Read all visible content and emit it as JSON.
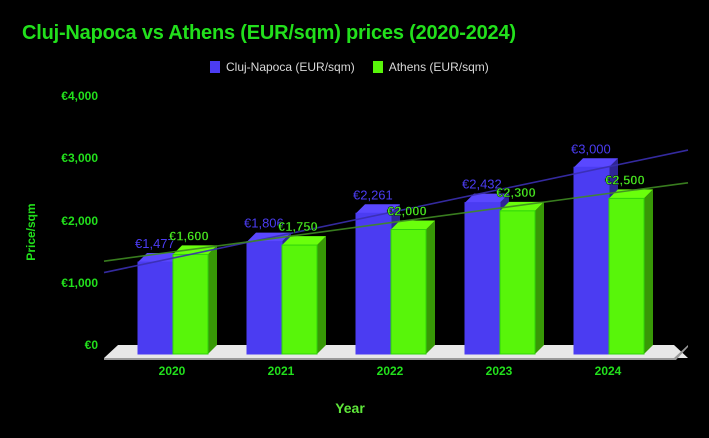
{
  "title": "Cluj-Napoca vs Athens (EUR/sqm) prices (2020-2024)",
  "legend": [
    {
      "label": "Cluj-Napoca (EUR/sqm)",
      "color": "#4b3cf2"
    },
    {
      "label": "Athens (EUR/sqm)",
      "color": "#58f50a"
    }
  ],
  "y_axis": {
    "label": "Price/sqm",
    "ticks": [
      "€0",
      "€1,000",
      "€2,000",
      "€3,000",
      "€4,000"
    ]
  },
  "x_axis": {
    "label": "Year",
    "ticks": [
      "2020",
      "2021",
      "2022",
      "2023",
      "2024"
    ]
  },
  "data_labels": {
    "cluj": [
      "€1,477",
      "€1,806",
      "€2,261",
      "€2,432",
      "€3,000"
    ],
    "athens": [
      "€1,600",
      "€1,750",
      "€2,000",
      "€2,300",
      "€2,500"
    ]
  },
  "colors": {
    "background": "#000000",
    "text": "#22e01c",
    "cluj": "#4b3cf2",
    "athens": "#58f50a",
    "floor": "#e8e8e8"
  },
  "chart_data": {
    "type": "bar",
    "title": "Cluj-Napoca vs Athens (EUR/sqm) prices (2020-2024)",
    "xlabel": "Year",
    "ylabel": "Price/sqm",
    "categories": [
      "2020",
      "2021",
      "2022",
      "2023",
      "2024"
    ],
    "series": [
      {
        "name": "Cluj-Napoca (EUR/sqm)",
        "values": [
          1477,
          1806,
          2261,
          2432,
          3000
        ],
        "color": "#4b3cf2"
      },
      {
        "name": "Athens (EUR/sqm)",
        "values": [
          1600,
          1750,
          2000,
          2300,
          2500
        ],
        "color": "#58f50a"
      }
    ],
    "trendlines": true,
    "ylim": [
      0,
      4000
    ],
    "yticks": [
      0,
      1000,
      2000,
      3000,
      4000
    ],
    "legend_position": "top",
    "grid": false,
    "style": "3d-bar"
  }
}
